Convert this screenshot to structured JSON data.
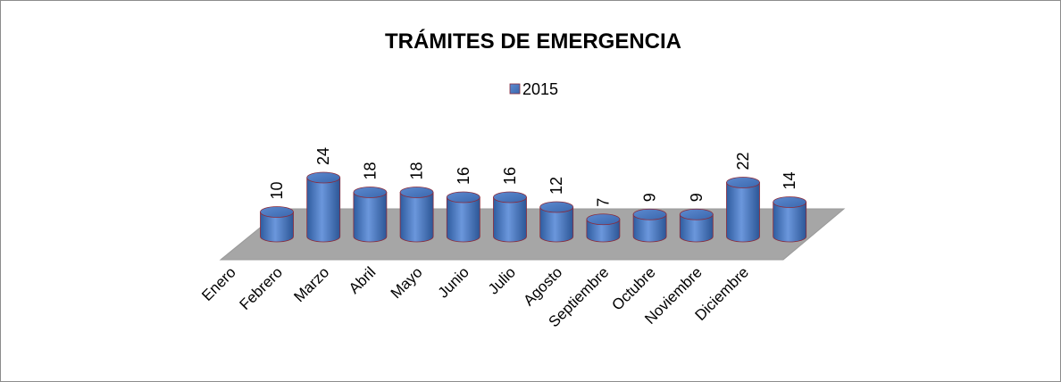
{
  "chart_data": {
    "type": "bar",
    "title": "TRÁMITES DE EMERGENCIA",
    "categories": [
      "Enero",
      "Febrero",
      "Marzo",
      "Abril",
      "Mayo",
      "Junio",
      "Julio",
      "Agosto",
      "Septiembre",
      "Octubre",
      "Noviembre",
      "Diciembre"
    ],
    "series": [
      {
        "name": "2015",
        "color": "#4f81bd",
        "values": [
          10,
          24,
          18,
          18,
          16,
          16,
          12,
          7,
          9,
          9,
          22,
          14
        ]
      }
    ],
    "legend": "top"
  }
}
